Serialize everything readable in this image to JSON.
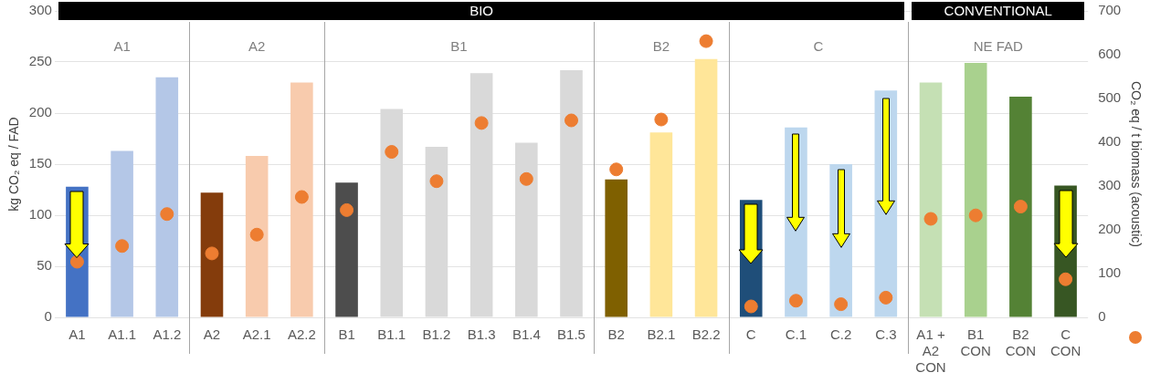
{
  "chart_data": {
    "type": "bar",
    "ylabel": "kg CO₂ eq / FAD",
    "y2label": "CO₂ eq / t biomass (acoustic)",
    "categories": [
      "A1",
      "A1.1",
      "A1.2",
      "A2",
      "A2.1",
      "A2.2",
      "B1",
      "B1.1",
      "B1.2",
      "B1.3",
      "B1.4",
      "B1.5",
      "B2",
      "B2.1",
      "B2.2",
      "C",
      "C.1",
      "C.2",
      "C.3",
      "A1 + A2 CON",
      "B1 CON",
      "B2 CON",
      "C CON"
    ],
    "series": [
      {
        "values": [
          128,
          163,
          235,
          122,
          158,
          230,
          132,
          204,
          167,
          239,
          171,
          242,
          135,
          181,
          253,
          115,
          186,
          150,
          222,
          230,
          249,
          216,
          129
        ],
        "colors": [
          "#4472c4",
          "#b4c7e7",
          "#b4c7e7",
          "#843c0c",
          "#f8cbad",
          "#f8cbad",
          "#4d4d4d",
          "#d9d9d9",
          "#d9d9d9",
          "#d9d9d9",
          "#d9d9d9",
          "#d9d9d9",
          "#7f6000",
          "#ffe699",
          "#ffe699",
          "#1f4e79",
          "#bdd7ee",
          "#bdd7ee",
          "#bdd7ee",
          "#c5e0b4",
          "#a9d18e",
          "#548235",
          "#375623"
        ]
      },
      {
        "type": "scatter",
        "axis": "y2",
        "color": "#ed7d31",
        "values": [
          127,
          163,
          236,
          146,
          189,
          275,
          245,
          378,
          311,
          444,
          316,
          450,
          338,
          452,
          631,
          25,
          38,
          30,
          45,
          225,
          233,
          253,
          87
        ]
      }
    ],
    "ylim": [
      0,
      300
    ],
    "yticks": [
      0,
      50,
      100,
      150,
      200,
      250,
      300
    ],
    "y2lim": [
      0,
      700
    ],
    "y2ticks": [
      0,
      100,
      200,
      300,
      400,
      500,
      600,
      700
    ],
    "annotations": [
      "BIO",
      "CONVENTIONAL",
      "A1",
      "A2",
      "B1",
      "B2",
      "C",
      "NE FAD"
    ],
    "grid": "y",
    "marker": "circle"
  }
}
